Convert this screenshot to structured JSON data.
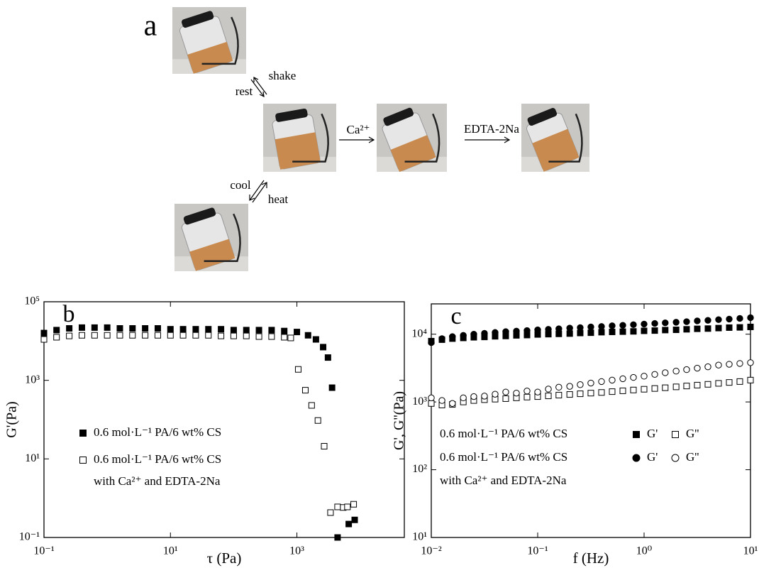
{
  "diagram": {
    "panel_label": "a",
    "shake": "shake",
    "rest": "rest",
    "ca": "Ca²⁺",
    "edta": "EDTA-2Na",
    "cool": "cool",
    "heat": "heat"
  },
  "chart_data": [
    {
      "type": "scatter",
      "panel_label": "b",
      "xlabel": "τ (Pa)",
      "ylabel": "G'(Pa)",
      "log_x": true,
      "log_y": true,
      "xlim": [
        0.1,
        50000
      ],
      "ylim": [
        0.1,
        100000
      ],
      "xticks": [
        {
          "value": 0.1,
          "label": "10⁻¹"
        },
        {
          "value": 10,
          "label": "10¹"
        },
        {
          "value": 1000,
          "label": "10³"
        }
      ],
      "yticks": [
        {
          "value": 0.1,
          "label": "10⁻¹"
        },
        {
          "value": 10,
          "label": "10¹"
        },
        {
          "value": 1000,
          "label": "10³"
        },
        {
          "value": 100000,
          "label": "10⁵"
        }
      ],
      "legend_note": "with Ca²⁺ and EDTA-2Na",
      "series": [
        {
          "name": "0.6 mol·L⁻¹ PA/6 wt% CS",
          "color": "#000000",
          "marker": "square",
          "filled": true,
          "x": [
            0.1,
            0.158,
            0.251,
            0.398,
            0.631,
            1,
            1.585,
            2.512,
            3.981,
            6.31,
            10,
            15.85,
            25.12,
            39.81,
            63.1,
            100,
            158.5,
            251.2,
            398.1,
            631,
            1000,
            1500,
            2000,
            2600,
            3100,
            3600,
            4400,
            6600,
            8200
          ],
          "values": [
            16000,
            19000,
            21000,
            22000,
            22000,
            22000,
            21000,
            21000,
            21000,
            21000,
            20000,
            20000,
            20000,
            20000,
            20000,
            19000,
            19000,
            19000,
            19000,
            18000,
            17000,
            14000,
            11000,
            7000,
            3800,
            650,
            0.1,
            0.22,
            0.28
          ]
        },
        {
          "name": "0.6 mol·L⁻¹ PA/6 wt% CS",
          "color": "#000000",
          "marker": "square",
          "filled": false,
          "x": [
            0.1,
            0.158,
            0.251,
            0.398,
            0.631,
            1,
            1.585,
            2.512,
            3.981,
            6.31,
            10,
            15.85,
            25.12,
            39.81,
            63.1,
            100,
            158.5,
            251.2,
            398.1,
            631,
            800,
            1050,
            1360,
            1710,
            2150,
            2700,
            3400,
            4400,
            5400,
            6300,
            7900
          ],
          "values": [
            11000,
            12500,
            13500,
            14000,
            14000,
            14000,
            14000,
            14000,
            14000,
            14000,
            14000,
            14000,
            14000,
            14000,
            13500,
            13500,
            13500,
            13000,
            13000,
            12500,
            12000,
            1900,
            560,
            230,
            95,
            21,
            0.43,
            0.6,
            0.58,
            0.6,
            0.7
          ]
        }
      ]
    },
    {
      "type": "scatter",
      "panel_label": "c",
      "xlabel": "f (Hz)",
      "ylabel": "G', G''(Pa)",
      "log_x": true,
      "log_y": true,
      "xlim": [
        0.01,
        10
      ],
      "ylim": [
        10,
        28000
      ],
      "xticks": [
        {
          "value": 0.01,
          "label": "10⁻²"
        },
        {
          "value": 0.1,
          "label": "10⁻¹"
        },
        {
          "value": 1,
          "label": "10⁰"
        },
        {
          "value": 10,
          "label": "10¹"
        }
      ],
      "yticks": [
        {
          "value": 10,
          "label": "10¹"
        },
        {
          "value": 100,
          "label": "10²"
        },
        {
          "value": 1000,
          "label": "10³"
        },
        {
          "value": 10000,
          "label": "10⁴"
        }
      ],
      "legend_rows": [
        "0.6 mol·L⁻¹ PA/6 wt% CS",
        "0.6 mol·L⁻¹ PA/6 wt% CS",
        "with Ca²⁺ and EDTA-2Na"
      ],
      "x": [
        0.01,
        0.0126,
        0.0158,
        0.02,
        0.0251,
        0.0316,
        0.0398,
        0.0501,
        0.0631,
        0.0794,
        0.1,
        0.126,
        0.158,
        0.2,
        0.251,
        0.316,
        0.398,
        0.501,
        0.631,
        0.794,
        1,
        1.26,
        1.58,
        2,
        2.51,
        3.16,
        3.98,
        5.01,
        6.31,
        7.94,
        10
      ],
      "series": [
        {
          "name": "G'",
          "color": "#000000",
          "marker": "square",
          "filled": true,
          "values": [
            7900,
            8300,
            8600,
            8800,
            9000,
            9100,
            9300,
            9400,
            9600,
            9700,
            9900,
            10000,
            10100,
            10200,
            10400,
            10500,
            10700,
            10800,
            10900,
            11000,
            11200,
            11300,
            11500,
            11600,
            11800,
            12000,
            12100,
            12300,
            12500,
            12600,
            12800
          ]
        },
        {
          "name": "G''",
          "color": "#000000",
          "marker": "square",
          "filled": false,
          "values": [
            950,
            900,
            920,
            1000,
            1050,
            1080,
            1100,
            1120,
            1150,
            1180,
            1200,
            1230,
            1260,
            1290,
            1320,
            1350,
            1380,
            1420,
            1460,
            1500,
            1540,
            1580,
            1620,
            1670,
            1720,
            1770,
            1820,
            1880,
            1940,
            2000,
            2100
          ]
        },
        {
          "name": "G'",
          "color": "#000000",
          "marker": "circle",
          "filled": true,
          "values": [
            7500,
            8600,
            9200,
            9600,
            10000,
            10300,
            10600,
            10900,
            11100,
            11300,
            11600,
            11800,
            12000,
            12300,
            12500,
            12800,
            13000,
            13300,
            13500,
            13800,
            14100,
            14400,
            14700,
            15000,
            15300,
            15700,
            16000,
            16400,
            16700,
            17100,
            17500
          ]
        },
        {
          "name": "G''",
          "color": "#000000",
          "marker": "circle",
          "filled": false,
          "values": [
            1150,
            1050,
            950,
            1150,
            1200,
            1220,
            1300,
            1400,
            1350,
            1450,
            1400,
            1550,
            1650,
            1700,
            1800,
            1900,
            2000,
            2100,
            2200,
            2300,
            2400,
            2550,
            2700,
            2850,
            3000,
            3150,
            3300,
            3500,
            3600,
            3700,
            3800
          ]
        }
      ]
    }
  ]
}
